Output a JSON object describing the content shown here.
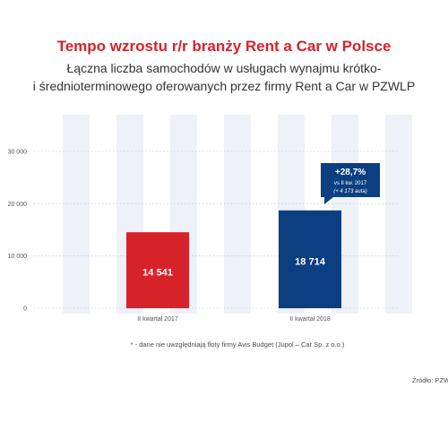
{
  "chart_data": {
    "type": "bar",
    "title": "Tempo wzrostu r/r branży Rent a Car w Polsce",
    "subtitle_line1": "Łączna liczba samochodów w usługach wynajmu krótko-",
    "subtitle_line2": "i średnioterminowego oferowanych przez firmy Rent a Car w PZWLP",
    "categories": [
      "II kwartał 2017",
      "II kwartał 2018"
    ],
    "values": [
      14541,
      18714
    ],
    "value_labels": [
      "14 541",
      "18 714"
    ],
    "bar_colors": [
      "#d8222a",
      "#0b3f82"
    ],
    "ylim": [
      0,
      30000
    ],
    "yticks": [
      0,
      10000,
      20000,
      30000
    ],
    "ytick_labels": [
      "0",
      "10 000",
      "20 000",
      "30 000"
    ],
    "grid": true,
    "callout": {
      "main": "+28,7%",
      "line2": "vs II kw. 2017",
      "line3": "(+ 4 173 auta)",
      "color": "#0b3f82"
    },
    "footnote": "* - dane nie uwzględniają floty firmy Avis Budget (Jupol – Car Sp. z o.o.)",
    "source": "Źródło: PZWLP"
  },
  "colors": {
    "title": "#d8222a",
    "band": "#eef1f7",
    "grid": "#c9cdd6"
  }
}
